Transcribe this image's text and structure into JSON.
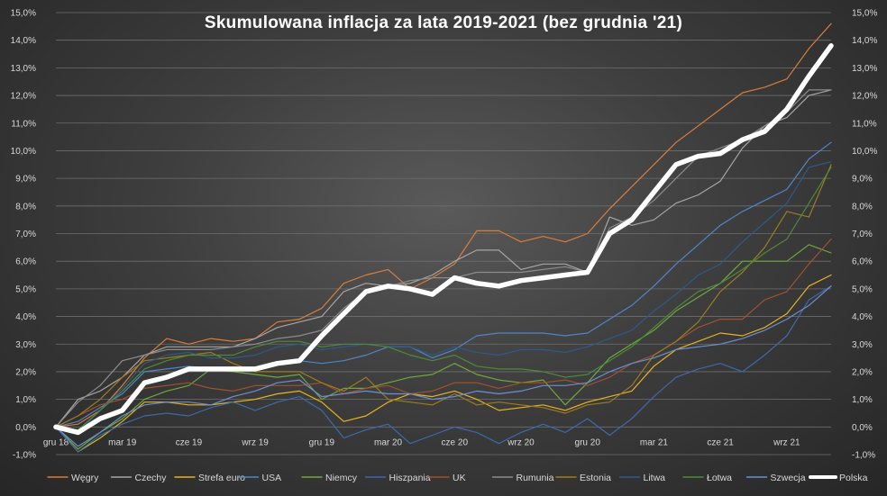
{
  "chart_data": {
    "type": "line",
    "title": "Skumulowana  inflacja  za lata  2019-2021  (bez grudnia  '21)",
    "y_ticks": [
      "-1,0%",
      "0,0%",
      "1,0%",
      "2,0%",
      "3,0%",
      "4,0%",
      "5,0%",
      "6,0%",
      "7,0%",
      "8,0%",
      "9,0%",
      "10,0%",
      "11,0%",
      "12,0%",
      "13,0%",
      "14,0%",
      "15,0%"
    ],
    "ylim": [
      -1,
      15
    ],
    "x_ticks": [
      {
        "label": "gru 18",
        "i": 0
      },
      {
        "label": "mar 19",
        "i": 3
      },
      {
        "label": "cze 19",
        "i": 6
      },
      {
        "label": "wrz 19",
        "i": 9
      },
      {
        "label": "gru 19",
        "i": 12
      },
      {
        "label": "mar 20",
        "i": 15
      },
      {
        "label": "cze 20",
        "i": 18
      },
      {
        "label": "wrz 20",
        "i": 21
      },
      {
        "label": "gru 20",
        "i": 24
      },
      {
        "label": "mar 21",
        "i": 27
      },
      {
        "label": "cze 21",
        "i": 30
      },
      {
        "label": "wrz 21",
        "i": 33
      }
    ],
    "x_count": 36,
    "grid": true,
    "legend_position": "bottom",
    "series": [
      {
        "name": "Węgry",
        "color": "#d97d3a",
        "width": 1.2,
        "values": [
          0,
          0.1,
          0.6,
          1.5,
          2.5,
          3.2,
          3.0,
          3.2,
          3.1,
          3.2,
          3.8,
          3.9,
          4.3,
          5.2,
          5.5,
          5.7,
          5.0,
          5.4,
          5.9,
          7.1,
          7.1,
          6.7,
          6.9,
          6.7,
          7.0,
          7.9,
          8.7,
          9.5,
          10.3,
          10.9,
          11.5,
          12.1,
          12.3,
          12.6,
          13.7,
          14.6
        ]
      },
      {
        "name": "Czechy",
        "color": "#a6a6a6",
        "width": 1.2,
        "values": [
          0,
          1.0,
          1.3,
          1.8,
          2.6,
          2.9,
          2.9,
          2.9,
          2.9,
          3.2,
          3.6,
          3.8,
          4.0,
          4.9,
          5.2,
          5.1,
          5.2,
          5.5,
          6.0,
          6.4,
          6.4,
          5.7,
          5.9,
          5.9,
          5.6,
          7.6,
          7.3,
          7.5,
          8.1,
          8.4,
          8.9,
          10.1,
          10.9,
          11.2,
          12.0,
          12.2
        ]
      },
      {
        "name": "Strefa euro",
        "color": "#e6b422",
        "width": 1.2,
        "values": [
          0,
          -0.9,
          -0.4,
          0.2,
          0.9,
          0.9,
          0.8,
          0.8,
          0.9,
          1.0,
          1.2,
          1.3,
          0.9,
          0.2,
          0.4,
          0.9,
          1.2,
          1.1,
          1.3,
          1.0,
          0.6,
          0.7,
          0.8,
          0.6,
          0.9,
          1.1,
          1.3,
          2.2,
          2.8,
          3.1,
          3.4,
          3.3,
          3.6,
          4.1,
          5.1,
          5.5
        ]
      },
      {
        "name": "USA",
        "color": "#4f86c6",
        "width": 1.2,
        "values": [
          0,
          0.2,
          0.7,
          1.2,
          2.0,
          2.1,
          2.2,
          2.1,
          2.0,
          2.1,
          2.3,
          2.4,
          2.3,
          2.4,
          2.6,
          2.9,
          2.9,
          2.5,
          2.8,
          3.3,
          3.4,
          3.4,
          3.4,
          3.3,
          3.4,
          3.9,
          4.4,
          5.1,
          5.9,
          6.6,
          7.3,
          7.8,
          8.2,
          8.6,
          9.7,
          10.3
        ]
      },
      {
        "name": "Niemcy",
        "color": "#6ea83c",
        "width": 1.2,
        "values": [
          0,
          -0.8,
          -0.2,
          0.3,
          1.0,
          1.3,
          1.5,
          2.1,
          2.0,
          1.9,
          1.8,
          1.9,
          1.0,
          1.4,
          1.4,
          1.6,
          1.8,
          1.9,
          2.3,
          1.9,
          1.7,
          1.6,
          1.7,
          0.8,
          1.6,
          2.5,
          3.0,
          3.5,
          4.2,
          4.7,
          5.2,
          6.0,
          6.0,
          6.0,
          6.6,
          6.3
        ]
      },
      {
        "name": "Hiszpania",
        "color": "#3d6aa8",
        "width": 1.2,
        "values": [
          0,
          -0.9,
          -0.3,
          0.1,
          0.4,
          0.5,
          0.4,
          0.7,
          0.9,
          0.6,
          0.9,
          1.1,
          0.6,
          -0.4,
          -0.1,
          0.1,
          -0.6,
          -0.3,
          0.0,
          -0.2,
          -0.6,
          -0.2,
          0.1,
          -0.2,
          0.3,
          -0.3,
          0.3,
          1.1,
          1.8,
          2.1,
          2.3,
          2.0,
          2.6,
          3.3,
          4.6,
          5.1
        ]
      },
      {
        "name": "UK",
        "color": "#a0522d",
        "width": 1.2,
        "values": [
          0,
          0.4,
          0.8,
          1.0,
          1.4,
          1.5,
          1.6,
          1.4,
          1.3,
          1.5,
          1.5,
          1.5,
          1.6,
          1.2,
          1.4,
          1.5,
          1.2,
          1.3,
          1.6,
          1.6,
          1.4,
          1.6,
          1.6,
          1.7,
          1.5,
          1.8,
          2.3,
          2.6,
          3.1,
          3.6,
          3.9,
          3.9,
          4.6,
          4.9,
          5.9,
          6.8
        ]
      },
      {
        "name": "Rumunia",
        "color": "#8c8c8c",
        "width": 1.2,
        "values": [
          0,
          0.9,
          1.5,
          2.4,
          2.6,
          2.8,
          2.8,
          2.8,
          2.9,
          3.0,
          3.2,
          3.3,
          3.5,
          4.3,
          4.9,
          5.1,
          5.3,
          5.4,
          5.4,
          5.6,
          5.6,
          5.6,
          5.7,
          5.8,
          5.6,
          7.2,
          7.6,
          8.2,
          9.0,
          9.8,
          10.1,
          10.4,
          10.9,
          11.4,
          12.2,
          12.2
        ]
      },
      {
        "name": "Estonia",
        "color": "#9c7c1e",
        "width": 1.2,
        "values": [
          0,
          0.4,
          1.0,
          1.8,
          2.4,
          2.5,
          2.6,
          2.7,
          2.3,
          2.0,
          2.0,
          2.0,
          1.6,
          1.3,
          1.8,
          1.0,
          0.9,
          0.8,
          1.2,
          0.8,
          0.9,
          0.8,
          0.7,
          0.5,
          0.8,
          0.9,
          1.5,
          2.6,
          3.1,
          3.8,
          4.9,
          5.6,
          6.5,
          7.8,
          7.6,
          9.5
        ]
      },
      {
        "name": "Litwa",
        "color": "#2e5a88",
        "width": 1.2,
        "values": [
          0,
          -0.2,
          0.6,
          1.4,
          2.3,
          2.6,
          2.7,
          2.5,
          2.5,
          2.6,
          2.9,
          3.0,
          2.8,
          2.9,
          3.0,
          2.9,
          2.9,
          2.6,
          2.9,
          2.7,
          2.6,
          2.8,
          2.8,
          2.7,
          2.9,
          3.2,
          3.5,
          4.2,
          4.8,
          5.5,
          5.9,
          6.7,
          7.4,
          8.1,
          9.4,
          9.6
        ]
      },
      {
        "name": "Łotwa",
        "color": "#4d8a3a",
        "width": 1.2,
        "values": [
          0,
          -0.1,
          0.6,
          1.3,
          2.1,
          2.4,
          2.6,
          2.6,
          2.6,
          2.9,
          3.1,
          3.1,
          2.9,
          3.0,
          3.0,
          2.9,
          2.6,
          2.4,
          2.6,
          2.2,
          2.1,
          2.1,
          2.0,
          1.8,
          1.9,
          2.4,
          2.9,
          3.6,
          4.3,
          4.9,
          5.2,
          5.7,
          6.3,
          6.8,
          8.1,
          9.4
        ]
      },
      {
        "name": "Szwecja",
        "color": "#6b8fd1",
        "width": 1.2,
        "values": [
          0,
          -0.7,
          -0.2,
          0.4,
          0.8,
          0.9,
          0.9,
          0.8,
          1.1,
          1.3,
          1.6,
          1.7,
          1.1,
          1.2,
          1.3,
          1.2,
          1.2,
          1.0,
          1.1,
          1.3,
          1.2,
          1.3,
          1.5,
          1.5,
          1.6,
          2.0,
          2.3,
          2.5,
          2.8,
          2.9,
          3.0,
          3.2,
          3.5,
          3.9,
          4.4,
          5.1
        ]
      },
      {
        "name": "Polska",
        "color": "#ffffff",
        "width": 5.5,
        "values": [
          0,
          -0.2,
          0.3,
          0.6,
          1.6,
          1.8,
          2.1,
          2.1,
          2.1,
          2.1,
          2.3,
          2.4,
          3.3,
          4.1,
          4.9,
          5.1,
          5.0,
          4.8,
          5.4,
          5.2,
          5.1,
          5.3,
          5.4,
          5.5,
          5.6,
          7.0,
          7.5,
          8.5,
          9.5,
          9.8,
          9.9,
          10.4,
          10.7,
          11.5,
          12.7,
          13.8
        ]
      }
    ]
  }
}
